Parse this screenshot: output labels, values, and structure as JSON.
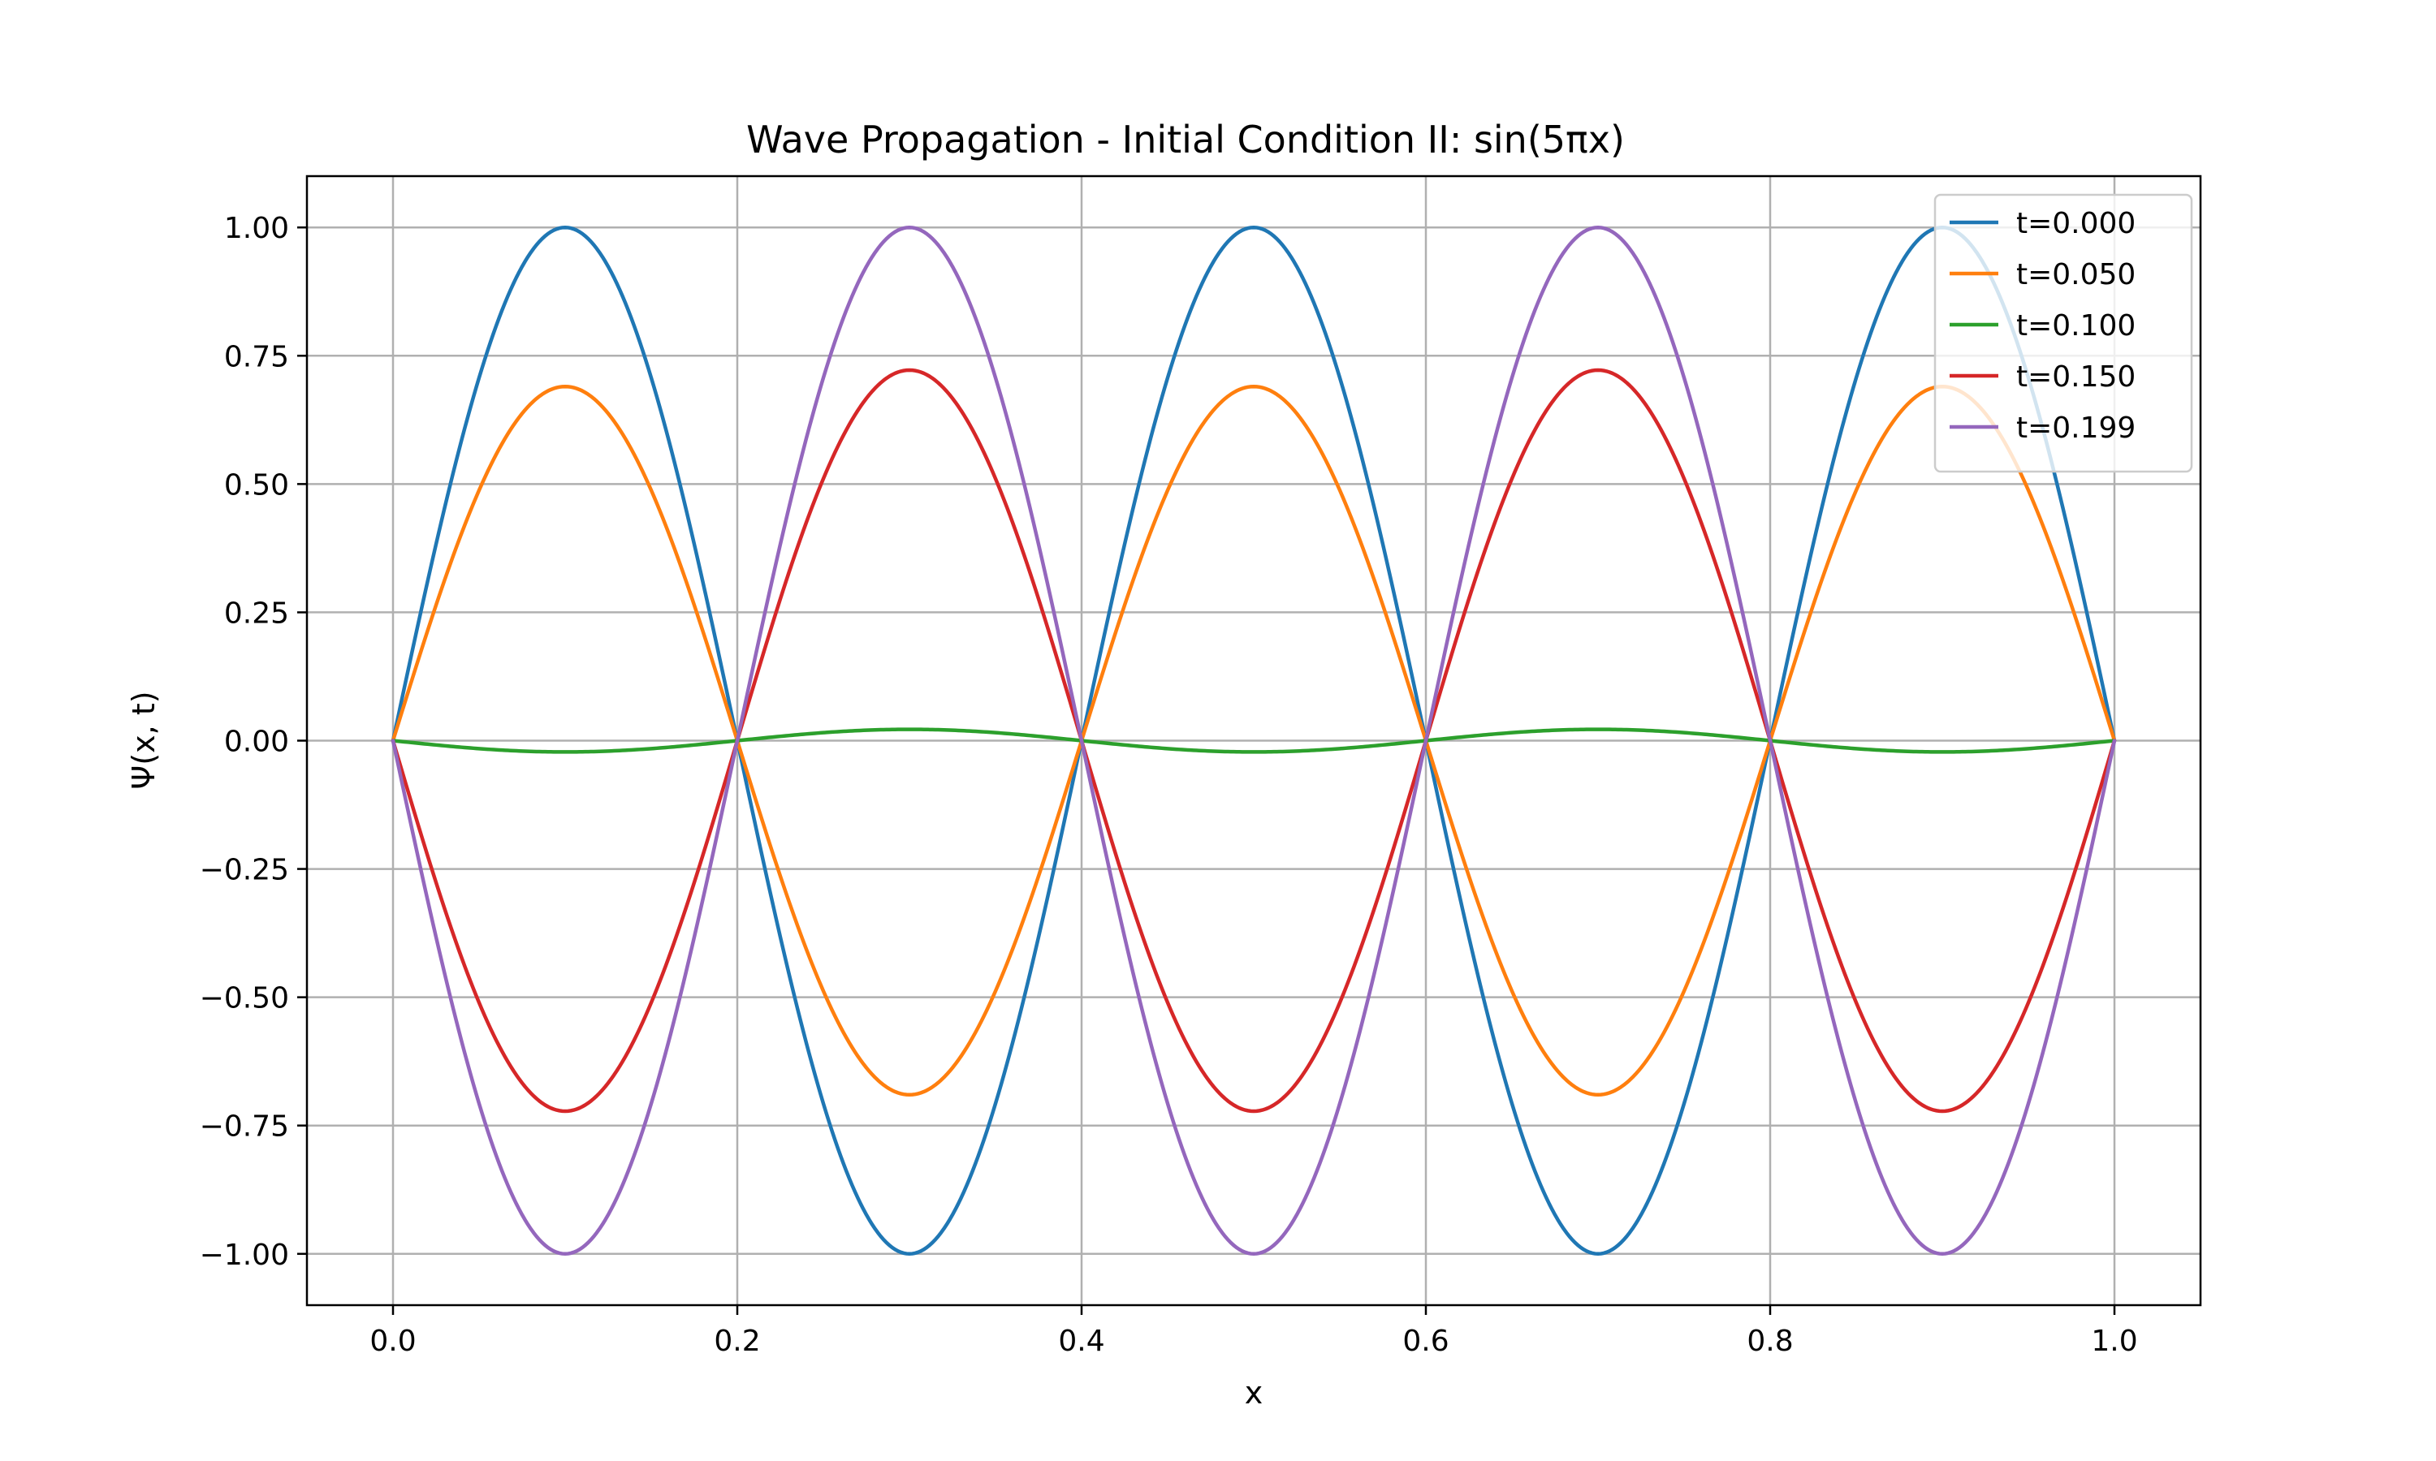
{
  "chart_data": {
    "type": "line",
    "title": "Wave Propagation - Initial Condition II: sin(5πx)",
    "xlabel": "x",
    "ylabel": "Ψ(x, t)",
    "xlim": [
      -0.05,
      1.05
    ],
    "ylim": [
      -1.1,
      1.1
    ],
    "xticks": [
      0.0,
      0.2,
      0.4,
      0.6,
      0.8,
      1.0
    ],
    "xtick_labels": [
      "0.0",
      "0.2",
      "0.4",
      "0.6",
      "0.8",
      "1.0"
    ],
    "yticks": [
      1.0,
      0.75,
      0.5,
      0.25,
      0.0,
      -0.25,
      -0.5,
      -0.75,
      -1.0
    ],
    "ytick_labels": [
      "1.00",
      "0.75",
      "0.50",
      "0.25",
      "0.00",
      "−0.25",
      "−0.50",
      "−0.75",
      "−1.00"
    ],
    "grid": true,
    "legend_position": "top-right",
    "x": [
      0.0,
      0.05,
      0.1,
      0.15,
      0.2,
      0.25,
      0.3,
      0.35,
      0.4,
      0.45,
      0.5,
      0.55,
      0.6,
      0.65,
      0.7,
      0.75,
      0.8,
      0.85,
      0.9,
      0.95,
      1.0
    ],
    "series": [
      {
        "name": "t=0.000",
        "color": "#1f77b4",
        "values": [
          0,
          0.707,
          1.0,
          0.707,
          0,
          -0.707,
          -1.0,
          -0.707,
          0,
          0.707,
          1.0,
          0.707,
          0,
          -0.707,
          -1.0,
          -0.707,
          0,
          0.707,
          1.0,
          0.707,
          0
        ]
      },
      {
        "name": "t=0.050",
        "color": "#ff7f0e",
        "values": [
          0,
          0.488,
          0.69,
          0.488,
          0,
          -0.488,
          -0.69,
          -0.488,
          0,
          0.488,
          0.69,
          0.488,
          0,
          -0.488,
          -0.69,
          -0.488,
          0,
          0.488,
          0.69,
          0.488,
          0
        ]
      },
      {
        "name": "t=0.100",
        "color": "#2ca02c",
        "values": [
          0,
          -0.016,
          -0.022,
          -0.016,
          0,
          0.016,
          0.022,
          0.016,
          0,
          -0.016,
          -0.022,
          -0.016,
          0,
          0.016,
          0.022,
          0.016,
          0,
          -0.016,
          -0.022,
          -0.016,
          0
        ]
      },
      {
        "name": "t=0.150",
        "color": "#d62728",
        "values": [
          0,
          -0.511,
          -0.722,
          -0.511,
          0,
          0.511,
          0.722,
          0.511,
          0,
          -0.511,
          -0.722,
          -0.511,
          0,
          0.511,
          0.722,
          0.511,
          0,
          -0.511,
          -0.722,
          -0.511,
          0
        ]
      },
      {
        "name": "t=0.199",
        "color": "#9467bd",
        "values": [
          0,
          -0.707,
          -1.0,
          -0.707,
          0,
          0.707,
          1.0,
          0.707,
          0,
          -0.707,
          -1.0,
          -0.707,
          0,
          0.707,
          1.0,
          0.707,
          0,
          -0.707,
          -1.0,
          -0.707,
          0
        ]
      }
    ]
  }
}
